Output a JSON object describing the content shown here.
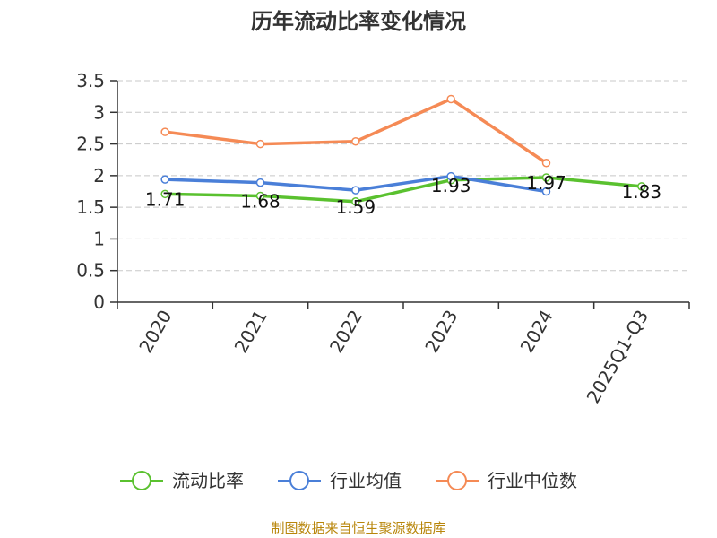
{
  "chart_data": {
    "type": "line",
    "title": "历年流动比率变化情况",
    "categories": [
      "2020",
      "2021",
      "2022",
      "2023",
      "2024",
      "2025Q1-Q3"
    ],
    "ylim": [
      0,
      3.5
    ],
    "yticks": [
      "0",
      "0.5",
      "1",
      "1.5",
      "2",
      "2.5",
      "3",
      "3.5"
    ],
    "grid": true,
    "legend_position": "bottom",
    "series": [
      {
        "name": "流动比率",
        "color": "#5ac12f",
        "values": [
          1.71,
          1.68,
          1.59,
          1.93,
          1.97,
          1.83
        ],
        "labels": [
          "1.71",
          "1.68",
          "1.59",
          "1.93",
          "1.97",
          "1.83"
        ]
      },
      {
        "name": "行业均值",
        "color": "#4a7fd8",
        "values": [
          1.94,
          1.89,
          1.77,
          1.99,
          1.75,
          null
        ]
      },
      {
        "name": "行业中位数",
        "color": "#f58a55",
        "values": [
          2.69,
          2.5,
          2.54,
          3.21,
          2.2,
          null
        ]
      }
    ],
    "source": "制图数据来自恒生聚源数据库"
  }
}
